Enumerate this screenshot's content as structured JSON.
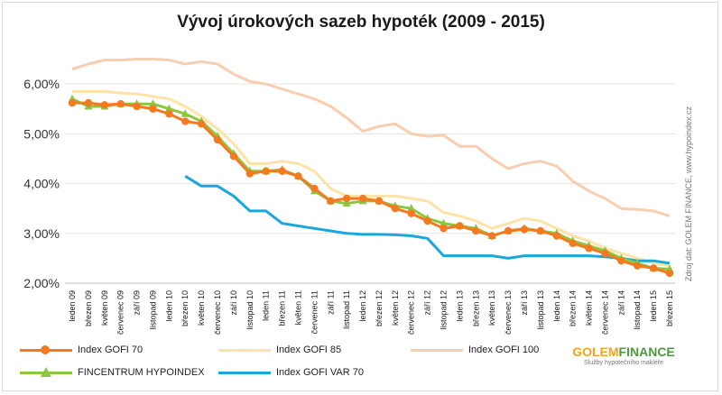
{
  "chart_data": {
    "type": "line",
    "title": "Vývoj úrokových sazeb hypoték (2009 - 2015)",
    "source_note": "Zdroj dat: GOLEM FINANCE, www.hypoindex.cz",
    "ylim": [
      2.0,
      6.6
    ],
    "yticks": [
      2.0,
      3.0,
      4.0,
      5.0,
      6.0
    ],
    "ytick_labels": [
      "2,00%",
      "3,00%",
      "4,00%",
      "5,00%",
      "6,00%"
    ],
    "x_labels": [
      "leden 09",
      "březen 09",
      "květen 09",
      "červenec 09",
      "září 09",
      "listopad 09",
      "leden 10",
      "březen 10",
      "květen 10",
      "červenec 10",
      "září 10",
      "listopad 10",
      "leden 11",
      "březen 11",
      "květen 11",
      "červenec 11",
      "září 11",
      "listopad 11",
      "leden 12",
      "březen 12",
      "květen 12",
      "červenec 12",
      "září 12",
      "listopad 12",
      "leden 13",
      "březen 13",
      "květen 13",
      "červenec 13",
      "září 13",
      "listopad 13",
      "leden 14",
      "březen 14",
      "květen 14",
      "červenec 14",
      "září 14",
      "listopad 14",
      "leden 15",
      "březen 15"
    ],
    "series": [
      {
        "name": "Index GOFI 100",
        "color": "#f9cdb0",
        "marker": "none",
        "values": [
          6.3,
          6.4,
          6.48,
          6.48,
          6.5,
          6.5,
          6.48,
          6.4,
          6.45,
          6.4,
          6.2,
          6.05,
          6.0,
          5.9,
          5.8,
          5.7,
          5.55,
          5.32,
          5.05,
          5.15,
          5.2,
          5.0,
          4.95,
          4.97,
          4.75,
          4.75,
          4.5,
          4.3,
          4.4,
          4.45,
          4.35,
          4.05,
          3.85,
          3.7,
          3.5,
          3.48,
          3.45,
          3.35
        ]
      },
      {
        "name": "Index GOFI 85",
        "color": "#fde3a7",
        "marker": "none",
        "values": [
          5.85,
          5.85,
          5.85,
          5.82,
          5.8,
          5.75,
          5.7,
          5.55,
          5.35,
          5.1,
          4.8,
          4.4,
          4.4,
          4.45,
          4.4,
          4.25,
          3.9,
          3.75,
          3.75,
          3.75,
          3.75,
          3.7,
          3.65,
          3.42,
          3.35,
          3.25,
          3.1,
          3.2,
          3.3,
          3.25,
          3.1,
          2.95,
          2.85,
          2.7,
          2.6,
          2.5,
          2.4,
          2.35
        ]
      },
      {
        "name": "Index GOFI VAR 70",
        "color": "#1aa7de",
        "marker": "none",
        "values": [
          null,
          null,
          null,
          null,
          null,
          null,
          null,
          4.15,
          3.95,
          3.95,
          3.75,
          3.45,
          3.45,
          3.2,
          3.15,
          3.1,
          3.05,
          3.0,
          2.98,
          2.98,
          2.97,
          2.95,
          2.9,
          2.55,
          2.55,
          2.55,
          2.55,
          2.5,
          2.55,
          2.55,
          2.55,
          2.55,
          2.55,
          2.53,
          2.5,
          2.45,
          2.45,
          2.4
        ]
      },
      {
        "name": "FINCENTRUM HYPOINDEX",
        "color": "#8dc63f",
        "marker": "triangle",
        "values": [
          5.7,
          5.55,
          5.55,
          5.6,
          5.6,
          5.6,
          5.5,
          5.4,
          5.25,
          4.95,
          4.6,
          4.25,
          4.25,
          4.28,
          4.15,
          3.85,
          3.65,
          3.6,
          3.65,
          3.65,
          3.55,
          3.5,
          3.3,
          3.2,
          3.15,
          3.1,
          2.95,
          3.05,
          3.1,
          3.05,
          3.0,
          2.85,
          2.75,
          2.65,
          2.5,
          2.4,
          2.3,
          2.28
        ]
      },
      {
        "name": "Index GOFI 70",
        "color": "#f47920",
        "marker": "circle",
        "values": [
          5.62,
          5.62,
          5.58,
          5.6,
          5.55,
          5.5,
          5.4,
          5.25,
          5.2,
          4.88,
          4.55,
          4.2,
          4.25,
          4.25,
          4.15,
          3.9,
          3.65,
          3.7,
          3.7,
          3.65,
          3.5,
          3.4,
          3.25,
          3.1,
          3.15,
          3.05,
          2.95,
          3.05,
          3.08,
          3.05,
          2.95,
          2.8,
          2.7,
          2.6,
          2.45,
          2.35,
          2.3,
          2.2
        ]
      }
    ]
  },
  "legend": {
    "gofi70": "Index GOFI 70",
    "gofi85": "Index GOFI 85",
    "gofi100": "Index GOFI 100",
    "fincentrum": "FINCENTRUM HYPOINDEX",
    "var70": "Index GOFI VAR 70"
  },
  "logo": {
    "brand_part1": "GOLEM",
    "brand_part2": "FINANCE",
    "tagline": "Služby hypotečního makléře"
  }
}
